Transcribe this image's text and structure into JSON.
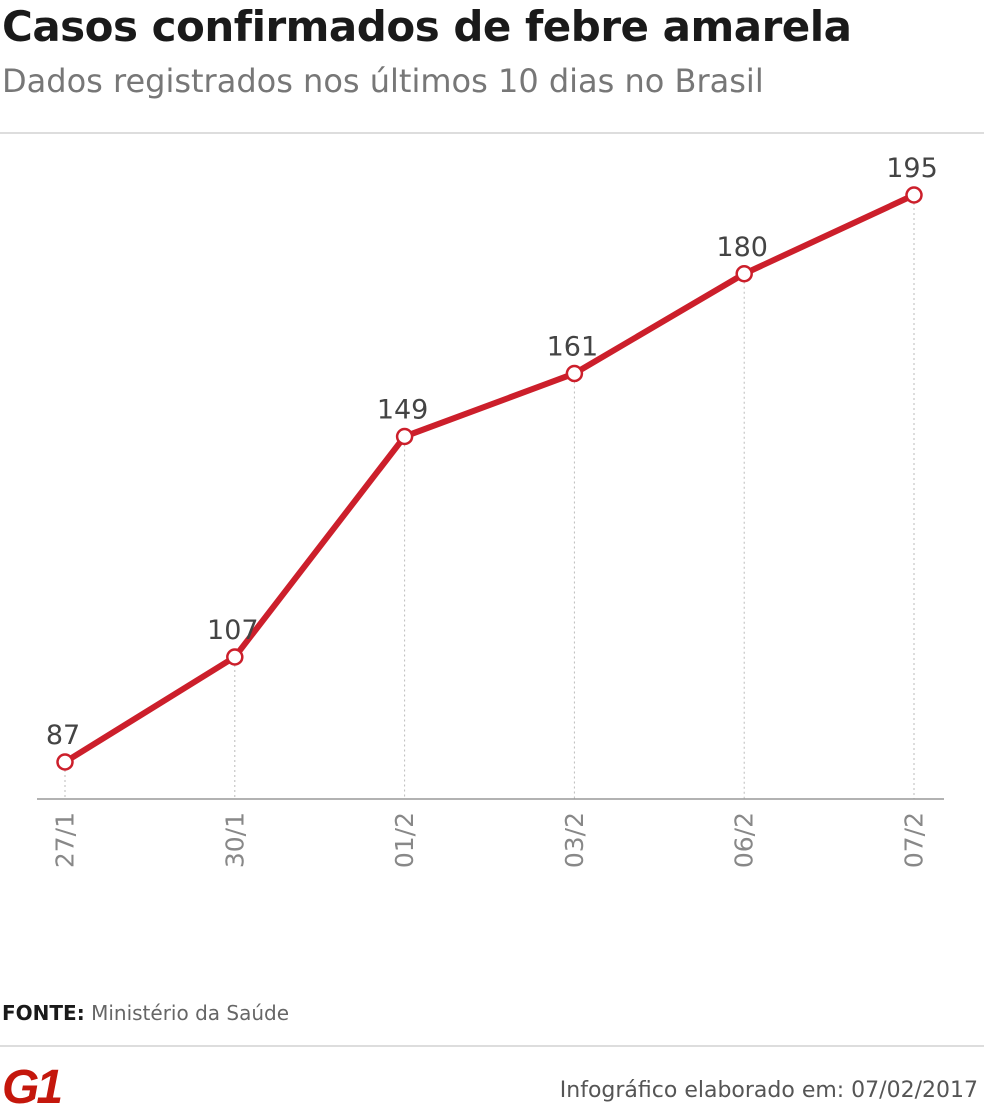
{
  "header": {
    "title": "Casos confirmados de febre amarela",
    "subtitle": "Dados registrados nos últimos 10 dias no Brasil"
  },
  "chart_data": {
    "type": "line",
    "categories": [
      "27/1",
      "30/1",
      "01/2",
      "03/2",
      "06/2",
      "07/2"
    ],
    "series": [
      {
        "values": [
          87,
          107,
          149,
          161,
          180,
          195
        ],
        "color": "#cc1f2b"
      }
    ],
    "data_labels": [
      "87",
      "107",
      "149",
      "161",
      "180",
      "195"
    ],
    "ylim": [
      80,
      200
    ],
    "grid": "vertical-dotted",
    "legend": "none",
    "marker": "hollow-circle"
  },
  "footer": {
    "source_label": "FONTE:",
    "source_text": "Ministério da Saúde",
    "logo_text": "G1",
    "credit": "Infográfico elaborado em: 07/02/2017"
  },
  "colors": {
    "line": "#cc1f2b",
    "logo": "#c4170c",
    "title": "#1a1a1a",
    "subtitle": "#777777"
  }
}
